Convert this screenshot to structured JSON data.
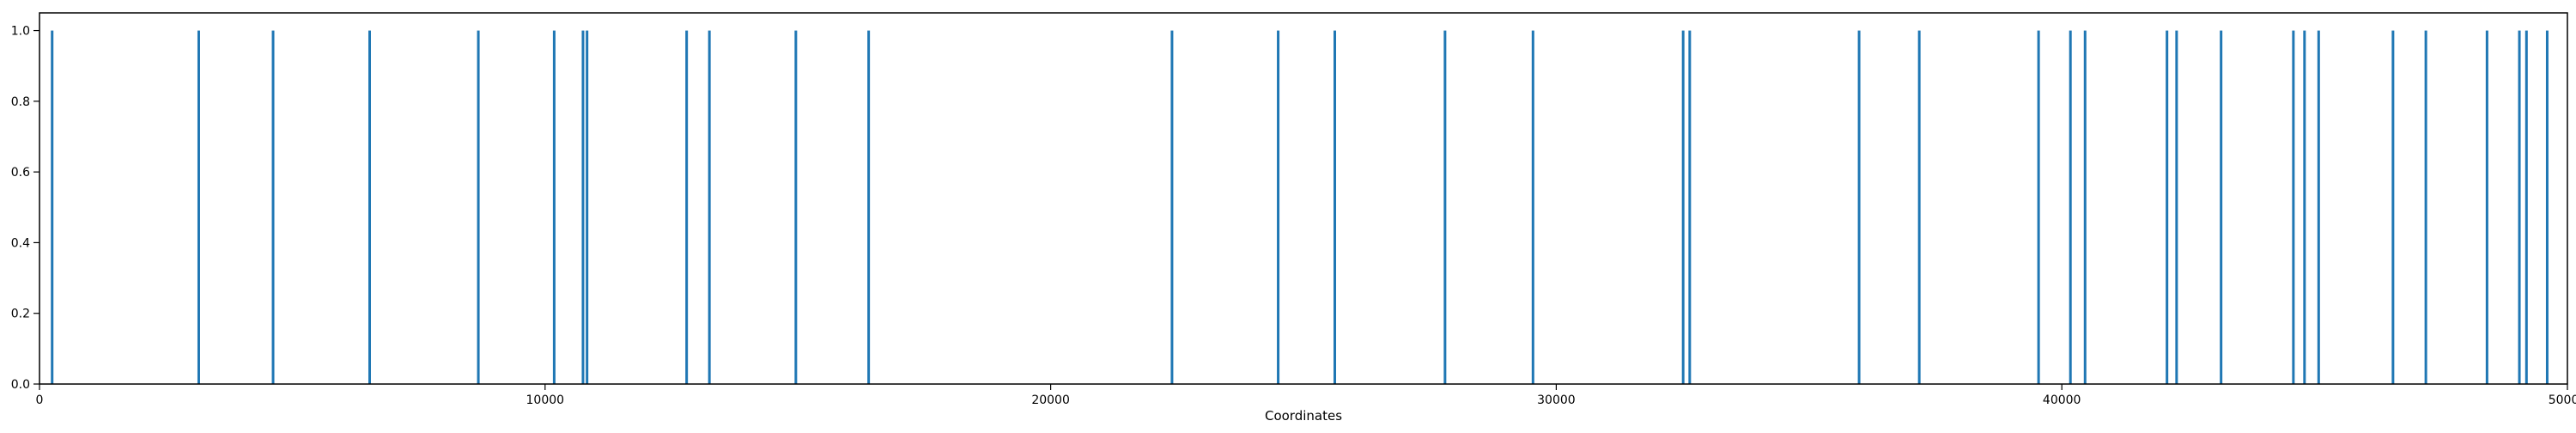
{
  "chart_data": {
    "type": "bar",
    "title": "",
    "xlabel": "Coordinates",
    "ylabel": "",
    "xlim": [
      0,
      50000
    ],
    "ylim": [
      0,
      1.05
    ],
    "grid": false,
    "x_ticks": [
      0,
      10000,
      20000,
      30000,
      40000,
      50000
    ],
    "x_tick_labels": [
      "0",
      "10000",
      "20000",
      "30000",
      "40000",
      "50000"
    ],
    "y_ticks": [
      0.0,
      0.2,
      0.4,
      0.6,
      0.8,
      1.0
    ],
    "y_tick_labels": [
      "0.0",
      "0.2",
      "0.4",
      "0.6",
      "0.8",
      "1.0"
    ],
    "bar_color": "#1f77b4",
    "x": [
      250,
      3150,
      4620,
      6530,
      8680,
      10180,
      10750,
      10830,
      12800,
      13250,
      14960,
      16400,
      22400,
      24500,
      25620,
      27800,
      29540,
      32510,
      32640,
      35990,
      37180,
      39540,
      40170,
      40460,
      42080,
      42270,
      43150,
      44580,
      44800,
      45080,
      46550,
      47200,
      48410,
      49050,
      49190,
      49600
    ],
    "values": [
      1,
      1,
      1,
      1,
      1,
      1,
      1,
      1,
      1,
      1,
      1,
      1,
      1,
      1,
      1,
      1,
      1,
      1,
      1,
      1,
      1,
      1,
      1,
      1,
      1,
      1,
      1,
      1,
      1,
      1,
      1,
      1,
      1,
      1,
      1,
      1
    ]
  }
}
